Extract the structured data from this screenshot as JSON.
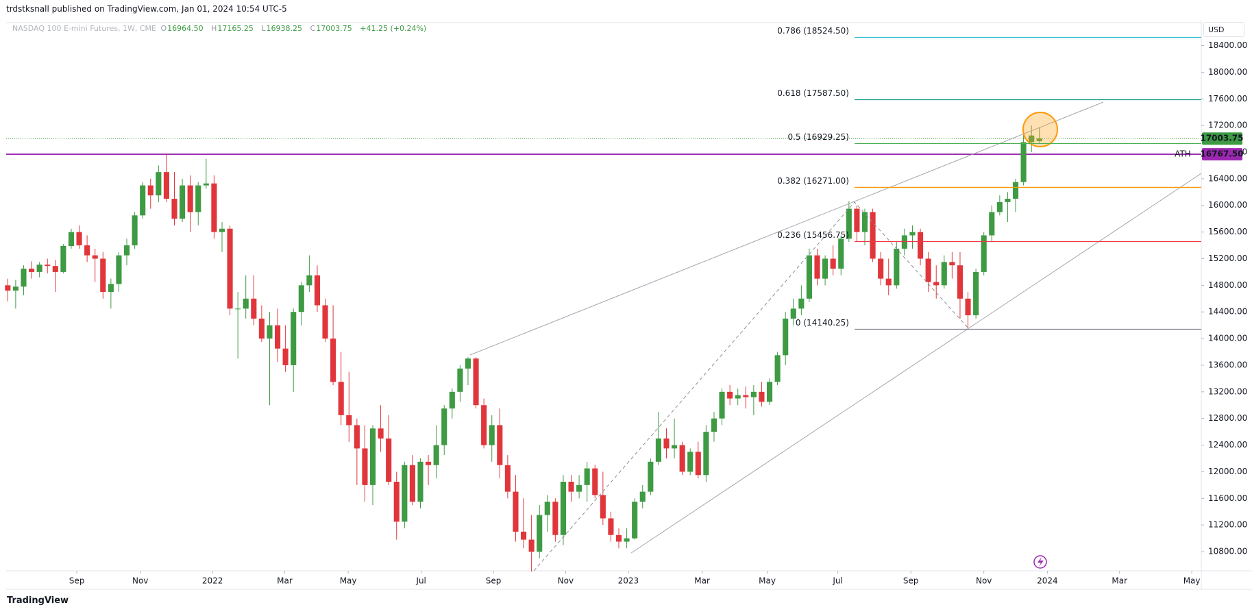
{
  "header": {
    "publisher": "trdstksnall published on TradingView.com, Jan 01, 2024 10:54 UTC-5"
  },
  "footer": {
    "brand": "TradingView"
  },
  "chart_data": {
    "type": "candlestick",
    "legend": {
      "symbol": "NASDAQ 100 E-mini Futures, 1W, CME",
      "o": "O",
      "open": "16964.50",
      "h": "H",
      "high": "17165.25",
      "l": "L",
      "low": "16938.25",
      "c": "C",
      "close": "17003.75",
      "change": "+41.25 (+0.24%)"
    },
    "currency": "USD",
    "up_color": "#3e9a43",
    "down_color": "#e0363b",
    "candles": [
      [
        14800,
        14900,
        14560,
        14720
      ],
      [
        14720,
        14880,
        14450,
        14780
      ],
      [
        14780,
        15100,
        14650,
        15050
      ],
      [
        15050,
        15160,
        14900,
        15000
      ],
      [
        15000,
        15150,
        14920,
        15110
      ],
      [
        15110,
        15200,
        14980,
        15090
      ],
      [
        15090,
        15180,
        14700,
        15000
      ],
      [
        15000,
        15420,
        14980,
        15390
      ],
      [
        15390,
        15650,
        15350,
        15600
      ],
      [
        15600,
        15700,
        15350,
        15400
      ],
      [
        15400,
        15550,
        15150,
        15250
      ],
      [
        15250,
        15350,
        14850,
        15200
      ],
      [
        15200,
        15300,
        14600,
        14700
      ],
      [
        14700,
        14900,
        14450,
        14820
      ],
      [
        14820,
        15300,
        14700,
        15250
      ],
      [
        15250,
        15500,
        15100,
        15400
      ],
      [
        15400,
        15900,
        15350,
        15850
      ],
      [
        15850,
        16350,
        15800,
        16300
      ],
      [
        16300,
        16400,
        15950,
        16150
      ],
      [
        16150,
        16600,
        16050,
        16500
      ],
      [
        16500,
        16767.5,
        16050,
        16100
      ],
      [
        16100,
        16500,
        15700,
        15800
      ],
      [
        15800,
        16400,
        15750,
        16300
      ],
      [
        16300,
        16450,
        15600,
        15900
      ],
      [
        15900,
        16350,
        15700,
        16300
      ],
      [
        16300,
        16700,
        16250,
        16330
      ],
      [
        16330,
        16450,
        15500,
        15600
      ],
      [
        15600,
        15750,
        15300,
        15650
      ],
      [
        15650,
        15700,
        14350,
        14450
      ],
      [
        14450,
        14700,
        13700,
        14450
      ],
      [
        14450,
        14950,
        14300,
        14600
      ],
      [
        14600,
        14950,
        14200,
        14300
      ],
      [
        14300,
        14500,
        13950,
        14000
      ],
      [
        14000,
        14400,
        13000,
        14200
      ],
      [
        14200,
        14450,
        13650,
        13850
      ],
      [
        13850,
        14200,
        13500,
        13600
      ],
      [
        13600,
        14450,
        13200,
        14400
      ],
      [
        14400,
        14850,
        14200,
        14800
      ],
      [
        14800,
        15250,
        14700,
        14950
      ],
      [
        14950,
        15100,
        14400,
        14500
      ],
      [
        14500,
        14600,
        13950,
        14000
      ],
      [
        14000,
        14500,
        13300,
        13350
      ],
      [
        13350,
        13800,
        12700,
        12850
      ],
      [
        12850,
        13500,
        12450,
        12700
      ],
      [
        12700,
        12800,
        11800,
        12350
      ],
      [
        12350,
        12700,
        11550,
        11800
      ],
      [
        11800,
        12700,
        11500,
        12650
      ],
      [
        12650,
        13000,
        12300,
        12500
      ],
      [
        12500,
        12850,
        11800,
        11850
      ],
      [
        11850,
        12000,
        10980,
        11250
      ],
      [
        11250,
        12150,
        11150,
        12100
      ],
      [
        12100,
        12250,
        11500,
        11550
      ],
      [
        11550,
        12200,
        11450,
        12150
      ],
      [
        12150,
        12250,
        11800,
        12100
      ],
      [
        12100,
        12700,
        11900,
        12400
      ],
      [
        12400,
        13000,
        12250,
        12950
      ],
      [
        12950,
        13250,
        12800,
        13200
      ],
      [
        13200,
        13600,
        13050,
        13550
      ],
      [
        13550,
        13720,
        13300,
        13700
      ],
      [
        13700,
        13720,
        12950,
        13000
      ],
      [
        13000,
        13100,
        12350,
        12400
      ],
      [
        12400,
        12850,
        12150,
        12700
      ],
      [
        12700,
        12950,
        11900,
        12100
      ],
      [
        12100,
        12250,
        11600,
        11700
      ],
      [
        11700,
        11950,
        10950,
        11100
      ],
      [
        11100,
        11600,
        10850,
        10980
      ],
      [
        10980,
        11350,
        10500,
        10800
      ],
      [
        10800,
        11500,
        10700,
        11350
      ],
      [
        11350,
        11650,
        11100,
        11550
      ],
      [
        11550,
        11600,
        10950,
        11050
      ],
      [
        11050,
        11950,
        10900,
        11850
      ],
      [
        11850,
        11950,
        11550,
        11700
      ],
      [
        11700,
        11950,
        11600,
        11800
      ],
      [
        11800,
        12150,
        11550,
        12050
      ],
      [
        12050,
        12100,
        11600,
        11650
      ],
      [
        11650,
        12000,
        11200,
        11300
      ],
      [
        11300,
        11400,
        10950,
        11050
      ],
      [
        11050,
        11150,
        10850,
        10950
      ],
      [
        10950,
        11150,
        10850,
        11000
      ],
      [
        11000,
        11600,
        10980,
        11550
      ],
      [
        11550,
        11800,
        11450,
        11700
      ],
      [
        11700,
        12200,
        11650,
        12150
      ],
      [
        12150,
        12900,
        12100,
        12500
      ],
      [
        12500,
        12650,
        12200,
        12350
      ],
      [
        12350,
        12800,
        12200,
        12400
      ],
      [
        12400,
        12450,
        11950,
        12000
      ],
      [
        12000,
        12350,
        11950,
        12300
      ],
      [
        12300,
        12450,
        11900,
        11950
      ],
      [
        11950,
        12700,
        11850,
        12600
      ],
      [
        12600,
        12900,
        12450,
        12800
      ],
      [
        12800,
        13250,
        12700,
        13200
      ],
      [
        13200,
        13300,
        13000,
        13100
      ],
      [
        13100,
        13250,
        13000,
        13150
      ],
      [
        13150,
        13280,
        12950,
        13120
      ],
      [
        13120,
        13300,
        12850,
        13200
      ],
      [
        13200,
        13350,
        12980,
        13050
      ],
      [
        13050,
        13400,
        13000,
        13350
      ],
      [
        13350,
        13800,
        13300,
        13750
      ],
      [
        13750,
        14400,
        13600,
        14300
      ],
      [
        14300,
        14600,
        14200,
        14450
      ],
      [
        14450,
        14800,
        14350,
        14600
      ],
      [
        14600,
        15350,
        14550,
        15250
      ],
      [
        15250,
        15350,
        14800,
        14900
      ],
      [
        14900,
        15250,
        14800,
        15200
      ],
      [
        15200,
        15400,
        14950,
        15050
      ],
      [
        15050,
        15550,
        14950,
        15500
      ],
      [
        15500,
        16062,
        15450,
        15950
      ],
      [
        15950,
        16000,
        15450,
        15600
      ],
      [
        15600,
        15950,
        15400,
        15900
      ],
      [
        15900,
        15950,
        15150,
        15200
      ],
      [
        15200,
        15300,
        14800,
        14900
      ],
      [
        14900,
        15200,
        14650,
        14800
      ],
      [
        14800,
        15450,
        14750,
        15350
      ],
      [
        15350,
        15650,
        15250,
        15550
      ],
      [
        15550,
        15700,
        15350,
        15600
      ],
      [
        15600,
        15650,
        15100,
        15200
      ],
      [
        15200,
        15300,
        14700,
        14850
      ],
      [
        14850,
        15100,
        14600,
        14800
      ],
      [
        14800,
        15250,
        14750,
        15150
      ],
      [
        15150,
        15300,
        14900,
        15100
      ],
      [
        15100,
        15300,
        14300,
        14600
      ],
      [
        14600,
        14700,
        14140.25,
        14350
      ],
      [
        14350,
        15050,
        14300,
        15000
      ],
      [
        15000,
        15600,
        14950,
        15550
      ],
      [
        15550,
        16000,
        15450,
        15900
      ],
      [
        15900,
        16150,
        15850,
        16050
      ],
      [
        16050,
        16200,
        15750,
        16100
      ],
      [
        16100,
        16400,
        15900,
        16350
      ],
      [
        16350,
        17150,
        16300,
        16950
      ],
      [
        16950,
        17200,
        16800,
        17050
      ],
      [
        16964.5,
        17165.25,
        16938.25,
        17003.75
      ]
    ],
    "xlim": [
      -0.2,
      150.4
    ],
    "xticks": [
      {
        "value": 8.7,
        "label": "Sep"
      },
      {
        "value": 16.7,
        "label": "Nov"
      },
      {
        "value": 25.8,
        "label": "2022"
      },
      {
        "value": 34.9,
        "label": "Mar"
      },
      {
        "value": 42.9,
        "label": "May"
      },
      {
        "value": 52.1,
        "label": "Jul"
      },
      {
        "value": 61.2,
        "label": "Sep"
      },
      {
        "value": 70.3,
        "label": "Nov"
      },
      {
        "value": 78.2,
        "label": "2023"
      },
      {
        "value": 87.5,
        "label": "Mar"
      },
      {
        "value": 95.7,
        "label": "May"
      },
      {
        "value": 104.6,
        "label": "Jul"
      },
      {
        "value": 113.8,
        "label": "Sep"
      },
      {
        "value": 123,
        "label": "Nov"
      },
      {
        "value": 131,
        "label": "2024"
      },
      {
        "value": 140.1,
        "label": "Mar"
      },
      {
        "value": 149.2,
        "label": "May"
      }
    ],
    "ylim": [
      10512,
      18776
    ],
    "yticks": [
      {
        "value": 10800,
        "label": "10800.00"
      },
      {
        "value": 11200,
        "label": "11200.00"
      },
      {
        "value": 11600,
        "label": "11600.00"
      },
      {
        "value": 12000,
        "label": "12000.00"
      },
      {
        "value": 12400,
        "label": "12400.00"
      },
      {
        "value": 12800,
        "label": "12800.00"
      },
      {
        "value": 13200,
        "label": "13200.00"
      },
      {
        "value": 13600,
        "label": "13600.00"
      },
      {
        "value": 14000,
        "label": "14000.00"
      },
      {
        "value": 14400,
        "label": "14400.00"
      },
      {
        "value": 14800,
        "label": "14800.00"
      },
      {
        "value": 15200,
        "label": "15200.00"
      },
      {
        "value": 15600,
        "label": "15600.00"
      },
      {
        "value": 16000,
        "label": "16000.00"
      },
      {
        "value": 16400,
        "label": "16400.00"
      },
      {
        "value": 16800,
        "label": "16800.00"
      },
      {
        "value": 17200,
        "label": "17200.00"
      },
      {
        "value": 17600,
        "label": "17600.00"
      },
      {
        "value": 18000,
        "label": "18000.00"
      },
      {
        "value": 18400,
        "label": "18400.00"
      }
    ],
    "fib_levels": [
      {
        "label": "0.786 (18524.50)",
        "value": 18524.5,
        "color": "#1fb5c9"
      },
      {
        "label": "0.618 (17587.50)",
        "value": 17587.5,
        "color": "#089981"
      },
      {
        "label": "0.5 (16929.25)",
        "value": 16929.25,
        "color": "#4caf50"
      },
      {
        "label": "0.382 (16271.00)",
        "value": 16271,
        "color": "#ff9800"
      },
      {
        "label": "0.236 (15456.75)",
        "value": 15456.75,
        "color": "#f23645"
      },
      {
        "label": "0 (14140.25)",
        "value": 14140.25,
        "color": "#787b86"
      }
    ],
    "ath": {
      "label": "ATH",
      "value": 16767.5,
      "value_label": "16767.50",
      "color": "#9c27b0"
    },
    "last_price": {
      "value": 17003.75,
      "value_label": "17003.75",
      "color": "#3e9a43"
    }
  }
}
